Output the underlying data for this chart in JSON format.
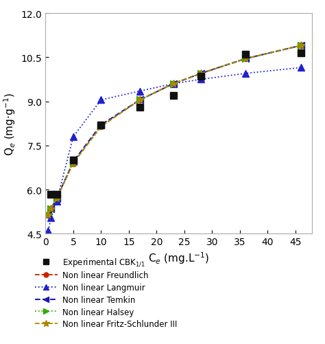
{
  "title": "",
  "xlabel": "C$_e$ (mg.L$^{-1}$)",
  "ylabel": "Q$_e$ (mg·g$^{-1}$)",
  "xlim": [
    0,
    48
  ],
  "ylim": [
    4.5,
    12.0
  ],
  "xticks": [
    0,
    5,
    10,
    15,
    20,
    25,
    30,
    35,
    40,
    45
  ],
  "yticks": [
    4.5,
    6.0,
    7.5,
    9.0,
    10.5,
    12.0
  ],
  "experimental": {
    "x": [
      1.0,
      2.0,
      5.0,
      10.0,
      17.0,
      23.0,
      28.0,
      36.0,
      46.0
    ],
    "y": [
      5.85,
      5.85,
      7.0,
      8.2,
      8.8,
      9.2,
      9.85,
      10.6,
      10.65
    ],
    "color": "#111111",
    "marker": "s",
    "markersize": 7,
    "label": "Experimental CBK$_{1/1}$"
  },
  "freundlich": {
    "x": [
      0.5,
      1.0,
      2.0,
      5.0,
      10.0,
      17.0,
      23.0,
      28.0,
      36.0,
      46.0
    ],
    "y": [
      5.15,
      5.35,
      5.7,
      6.9,
      8.15,
      9.05,
      9.6,
      9.95,
      10.45,
      10.9
    ],
    "color": "#cc2200",
    "linestyle": "--",
    "marker": "o",
    "markersize": 6,
    "label": "Non linear Freundlich"
  },
  "langmuir": {
    "x": [
      0.5,
      1.0,
      2.0,
      5.0,
      10.0,
      17.0,
      23.0,
      28.0,
      36.0,
      46.0
    ],
    "y": [
      4.6,
      5.05,
      5.6,
      7.8,
      9.05,
      9.35,
      9.6,
      9.75,
      9.95,
      10.15
    ],
    "color": "#2222cc",
    "linestyle": ":",
    "marker": "^",
    "markersize": 7,
    "label": "Non linear Langmuir"
  },
  "temkin": {
    "x": [
      0.5,
      1.0,
      2.0,
      5.0,
      10.0,
      17.0,
      23.0,
      28.0,
      36.0,
      46.0
    ],
    "y": [
      5.15,
      5.35,
      5.7,
      6.95,
      8.2,
      9.05,
      9.6,
      9.95,
      10.45,
      10.9
    ],
    "color": "#1a1aaa",
    "linestyle": "--",
    "marker": "<",
    "markersize": 7,
    "label": "Non linear Temkin"
  },
  "halsey": {
    "x": [
      0.5,
      1.0,
      2.0,
      5.0,
      10.0,
      17.0,
      23.0,
      28.0,
      36.0,
      46.0
    ],
    "y": [
      5.15,
      5.35,
      5.7,
      6.9,
      8.15,
      9.05,
      9.6,
      9.95,
      10.45,
      10.9
    ],
    "color": "#33aa00",
    "linestyle": ":",
    "marker": ">",
    "markersize": 7,
    "label": "Non linear Halsey"
  },
  "fritz_schlunder": {
    "x": [
      0.5,
      1.0,
      2.0,
      5.0,
      10.0,
      17.0,
      23.0,
      28.0,
      36.0,
      46.0
    ],
    "y": [
      5.15,
      5.35,
      5.7,
      6.9,
      8.15,
      9.05,
      9.6,
      9.95,
      10.45,
      10.9
    ],
    "color": "#aa8800",
    "linestyle": "--",
    "marker": "*",
    "markersize": 8,
    "label": "Non linear Fritz-Schlunder III"
  },
  "legend_fontsize": 8.5,
  "axis_fontsize": 11,
  "tick_fontsize": 10
}
